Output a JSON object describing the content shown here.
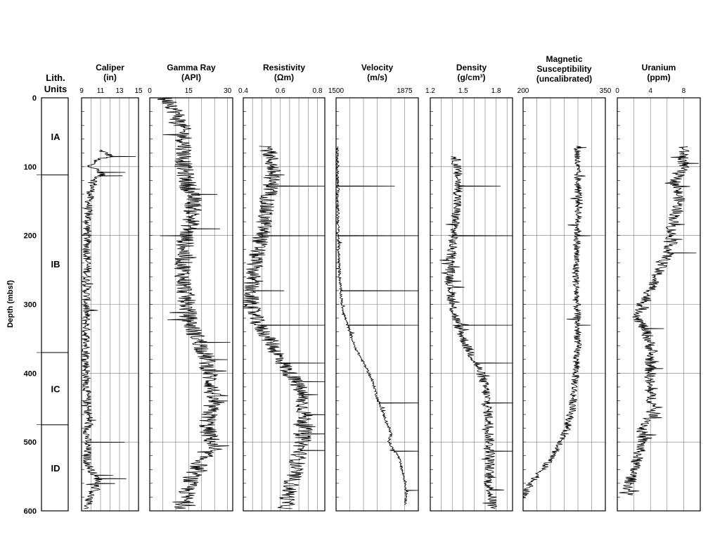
{
  "chart_data": {
    "type": "line",
    "y_axis": {
      "label": "Depth (mbsf)",
      "ylim": [
        0,
        600
      ],
      "ticks": [
        "0",
        "100",
        "200",
        "300",
        "400",
        "500",
        "600"
      ],
      "tick_values": [
        0,
        100,
        200,
        300,
        400,
        500,
        600
      ],
      "inverted": true
    },
    "lith_units": {
      "title_line1": "Lith.",
      "title_line2": "Units",
      "units": [
        {
          "name": "IA",
          "top": 0,
          "base": 112
        },
        {
          "name": "IB",
          "top": 112,
          "base": 370
        },
        {
          "name": "IC",
          "top": 370,
          "base": 475
        },
        {
          "name": "ID",
          "top": 475,
          "base": 600
        }
      ]
    },
    "panels": [
      {
        "key": "caliper",
        "title": "Caliper",
        "unit": "(in)",
        "xlim": [
          9,
          15
        ],
        "tick_labels": [
          "9",
          "11",
          "13",
          "15"
        ],
        "tick_values": [
          9,
          11,
          13,
          15
        ],
        "minor_every": 1,
        "profile": [
          [
            0,
            null
          ],
          [
            75,
            10.8
          ],
          [
            80,
            11.5
          ],
          [
            85,
            12.2
          ],
          [
            90,
            10.4
          ],
          [
            100,
            10.1
          ],
          [
            110,
            11.2
          ],
          [
            120,
            10.4
          ],
          [
            140,
            9.9
          ],
          [
            160,
            9.7
          ],
          [
            200,
            9.6
          ],
          [
            250,
            9.6
          ],
          [
            300,
            9.5
          ],
          [
            350,
            9.5
          ],
          [
            400,
            9.5
          ],
          [
            450,
            9.6
          ],
          [
            465,
            9.8
          ],
          [
            480,
            9.6
          ],
          [
            500,
            9.6
          ],
          [
            530,
            9.6
          ],
          [
            545,
            10.2
          ],
          [
            555,
            10.8
          ],
          [
            570,
            10.4
          ],
          [
            580,
            9.8
          ],
          [
            595,
            9.6
          ]
        ],
        "spikes": [
          [
            85,
            14.7
          ],
          [
            108,
            13.6
          ],
          [
            113,
            13.3
          ],
          [
            468,
            10.5
          ],
          [
            500,
            13.5
          ],
          [
            548,
            12.3
          ],
          [
            553,
            13.7
          ],
          [
            560,
            12.5
          ]
        ],
        "noise": 0.45
      },
      {
        "key": "gamma",
        "title": "Gamma Ray",
        "unit": "(API)",
        "xlim": [
          0,
          32
        ],
        "tick_labels": [
          "0",
          "15",
          "30"
        ],
        "tick_values": [
          0,
          15,
          30
        ],
        "minor_every": 5,
        "profile": [
          [
            0,
            5
          ],
          [
            10,
            9
          ],
          [
            30,
            11
          ],
          [
            50,
            13
          ],
          [
            70,
            13.5
          ],
          [
            100,
            13
          ],
          [
            130,
            15
          ],
          [
            150,
            17
          ],
          [
            180,
            16
          ],
          [
            200,
            14
          ],
          [
            230,
            13
          ],
          [
            260,
            13
          ],
          [
            290,
            14
          ],
          [
            320,
            15
          ],
          [
            340,
            17
          ],
          [
            360,
            20
          ],
          [
            380,
            22
          ],
          [
            400,
            23
          ],
          [
            420,
            24
          ],
          [
            440,
            24
          ],
          [
            460,
            23
          ],
          [
            480,
            22
          ],
          [
            500,
            24
          ],
          [
            520,
            21
          ],
          [
            540,
            18
          ],
          [
            560,
            15
          ],
          [
            580,
            14
          ],
          [
            595,
            13
          ]
        ],
        "spikes": [
          [
            2,
            3
          ],
          [
            140,
            26
          ],
          [
            190,
            27
          ],
          [
            200,
            4
          ],
          [
            355,
            31
          ],
          [
            380,
            30
          ],
          [
            440,
            30
          ]
        ],
        "noise": 3.5
      },
      {
        "key": "resistivity",
        "title": "Resistivity",
        "unit": "(Ωm)",
        "xlim": [
          0.4,
          0.84
        ],
        "tick_labels": [
          "0.4",
          "0.6",
          "0.8"
        ],
        "tick_values": [
          0.4,
          0.6,
          0.8
        ],
        "minor_every": 0.05,
        "profile": [
          [
            0,
            null
          ],
          [
            70,
            0.53
          ],
          [
            100,
            0.56
          ],
          [
            130,
            0.55
          ],
          [
            160,
            0.52
          ],
          [
            190,
            0.51
          ],
          [
            200,
            0.5
          ],
          [
            230,
            0.47
          ],
          [
            260,
            0.45
          ],
          [
            280,
            0.44
          ],
          [
            300,
            0.44
          ],
          [
            330,
            0.48
          ],
          [
            350,
            0.54
          ],
          [
            380,
            0.6
          ],
          [
            400,
            0.65
          ],
          [
            420,
            0.7
          ],
          [
            440,
            0.72
          ],
          [
            460,
            0.73
          ],
          [
            480,
            0.73
          ],
          [
            500,
            0.72
          ],
          [
            520,
            0.7
          ],
          [
            540,
            0.68
          ],
          [
            560,
            0.66
          ],
          [
            580,
            0.64
          ],
          [
            595,
            0.63
          ]
        ],
        "spikes": [
          [
            128,
            0.84
          ],
          [
            200,
            0.84
          ],
          [
            280,
            0.62
          ],
          [
            305,
            0.4
          ],
          [
            330,
            0.84
          ],
          [
            385,
            0.84
          ],
          [
            412,
            0.84
          ],
          [
            460,
            0.84
          ],
          [
            488,
            0.84
          ],
          [
            512,
            0.84
          ]
        ],
        "noise": 0.045
      },
      {
        "key": "velocity",
        "title": "Velocity",
        "unit": "(m/s)",
        "xlim": [
          1500,
          1950
        ],
        "tick_labels": [
          "1500",
          "1875"
        ],
        "tick_values": [
          1500,
          1875
        ],
        "minor_every": 75,
        "profile": [
          [
            0,
            null
          ],
          [
            70,
            1505
          ],
          [
            100,
            1508
          ],
          [
            150,
            1510
          ],
          [
            200,
            1512
          ],
          [
            250,
            1518
          ],
          [
            280,
            1525
          ],
          [
            300,
            1532
          ],
          [
            320,
            1550
          ],
          [
            340,
            1575
          ],
          [
            360,
            1600
          ],
          [
            380,
            1640
          ],
          [
            400,
            1680
          ],
          [
            420,
            1710
          ],
          [
            440,
            1730
          ],
          [
            460,
            1760
          ],
          [
            480,
            1790
          ],
          [
            490,
            1800
          ],
          [
            500,
            1790
          ],
          [
            510,
            1810
          ],
          [
            520,
            1840
          ],
          [
            540,
            1860
          ],
          [
            560,
            1880
          ],
          [
            580,
            1885
          ],
          [
            590,
            1880
          ]
        ],
        "spikes": [
          [
            128,
            1820
          ],
          [
            200,
            1950
          ],
          [
            280,
            1950
          ],
          [
            330,
            1950
          ],
          [
            443,
            1950
          ],
          [
            513,
            1950
          ],
          [
            570,
            1950
          ]
        ],
        "noise": 8
      },
      {
        "key": "density",
        "title": "Density",
        "unit": "(g/cm³)",
        "xlim": [
          1.2,
          1.95
        ],
        "tick_labels": [
          "1.2",
          "1.5",
          "1.8"
        ],
        "tick_values": [
          1.2,
          1.5,
          1.8
        ],
        "minor_every": 0.1,
        "profile": [
          [
            0,
            null
          ],
          [
            85,
            1.43
          ],
          [
            100,
            1.44
          ],
          [
            130,
            1.46
          ],
          [
            160,
            1.44
          ],
          [
            200,
            1.41
          ],
          [
            230,
            1.39
          ],
          [
            260,
            1.38
          ],
          [
            300,
            1.4
          ],
          [
            330,
            1.45
          ],
          [
            360,
            1.53
          ],
          [
            380,
            1.6
          ],
          [
            400,
            1.66
          ],
          [
            420,
            1.7
          ],
          [
            440,
            1.72
          ],
          [
            460,
            1.73
          ],
          [
            480,
            1.74
          ],
          [
            500,
            1.74
          ],
          [
            520,
            1.75
          ],
          [
            540,
            1.74
          ],
          [
            560,
            1.73
          ],
          [
            580,
            1.76
          ],
          [
            595,
            1.78
          ]
        ],
        "spikes": [
          [
            128,
            1.84
          ],
          [
            200,
            1.95
          ],
          [
            330,
            1.95
          ],
          [
            385,
            1.95
          ],
          [
            443,
            1.95
          ],
          [
            513,
            1.95
          ]
        ],
        "noise": 0.045
      },
      {
        "key": "magsus",
        "title": "Magnetic",
        "title_line2": "Susceptibility",
        "unit": "(uncalibrated)",
        "xlim": [
          200,
          350
        ],
        "tick_labels": [
          "200",
          "350"
        ],
        "tick_values": [
          200,
          350
        ],
        "minor_every": 25,
        "profile": [
          [
            0,
            null
          ],
          [
            70,
            300
          ],
          [
            100,
            298
          ],
          [
            150,
            302
          ],
          [
            200,
            299
          ],
          [
            250,
            296
          ],
          [
            300,
            298
          ],
          [
            350,
            300
          ],
          [
            400,
            296
          ],
          [
            450,
            290
          ],
          [
            480,
            280
          ],
          [
            500,
            270
          ],
          [
            520,
            255
          ],
          [
            540,
            235
          ],
          [
            555,
            220
          ],
          [
            565,
            210
          ],
          [
            575,
            203
          ],
          [
            580,
            201
          ]
        ],
        "spikes": [
          [
            72,
            315
          ],
          [
            200,
            323
          ],
          [
            330,
            323
          ]
        ],
        "noise": 7
      },
      {
        "key": "uranium",
        "title": "Uranium",
        "unit": "(ppm)",
        "xlim": [
          0,
          10
        ],
        "tick_labels": [
          "0",
          "4",
          "8"
        ],
        "tick_values": [
          0,
          4,
          8
        ],
        "minor_every": 2,
        "profile": [
          [
            0,
            null
          ],
          [
            70,
            8
          ],
          [
            100,
            8
          ],
          [
            120,
            7
          ],
          [
            150,
            7.5
          ],
          [
            170,
            7
          ],
          [
            190,
            6.5
          ],
          [
            210,
            6.5
          ],
          [
            230,
            6
          ],
          [
            250,
            5
          ],
          [
            280,
            4
          ],
          [
            300,
            3
          ],
          [
            320,
            2.5
          ],
          [
            340,
            3.5
          ],
          [
            360,
            4
          ],
          [
            380,
            4
          ],
          [
            400,
            4
          ],
          [
            420,
            3.8
          ],
          [
            440,
            4.2
          ],
          [
            460,
            4.5
          ],
          [
            480,
            3
          ],
          [
            500,
            3
          ],
          [
            520,
            2.5
          ],
          [
            540,
            2
          ],
          [
            560,
            1.5
          ],
          [
            575,
            1.2
          ]
        ],
        "spikes": [
          [
            95,
            9.8
          ],
          [
            225,
            9.5
          ],
          [
            335,
            5.6
          ],
          [
            393,
            5.5
          ]
        ],
        "noise": 0.7
      }
    ]
  }
}
